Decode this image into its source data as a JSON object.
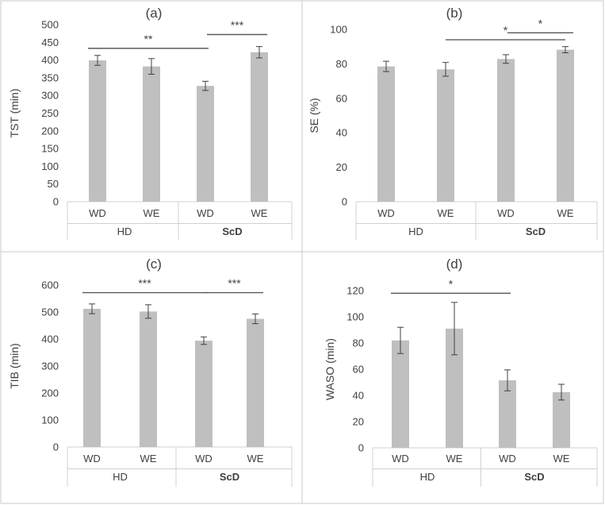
{
  "chart_data": [
    {
      "type": "bar",
      "title": "(a)",
      "ylabel": "TST (min)",
      "ylim": [
        0,
        500
      ],
      "yticks": [
        0,
        50,
        100,
        150,
        200,
        250,
        300,
        350,
        400,
        450,
        500
      ],
      "categories": [
        "WD",
        "WE",
        "WD",
        "WE"
      ],
      "groups": [
        {
          "label": "HD",
          "bold": false
        },
        {
          "label": "ScD",
          "bold": true
        }
      ],
      "values": [
        399,
        382,
        327,
        422
      ],
      "errors": [
        14,
        22,
        13,
        16
      ],
      "significance": [
        {
          "from": 0,
          "to": 2,
          "y": 433,
          "label": "**"
        },
        {
          "from": 2,
          "to": 3,
          "y": 472,
          "label": "***"
        }
      ]
    },
    {
      "type": "bar",
      "title": "(b)",
      "ylabel": "SE (%)",
      "ylim": [
        0,
        100
      ],
      "yticks": [
        0,
        20,
        40,
        60,
        80,
        100
      ],
      "categories": [
        "WD",
        "WE",
        "WD",
        "WE"
      ],
      "groups": [
        {
          "label": "HD",
          "bold": false
        },
        {
          "label": "ScD",
          "bold": true
        }
      ],
      "values": [
        78.5,
        76.8,
        82.8,
        88.2
      ],
      "errors": [
        3,
        4,
        2.5,
        1.8
      ],
      "significance": [
        {
          "from": 1,
          "to": 3,
          "y": 94,
          "label": "*"
        },
        {
          "from": 2,
          "to": 3,
          "y": 98,
          "label": "*"
        }
      ]
    },
    {
      "type": "bar",
      "title": "(c)",
      "ylabel": "TIB (min)",
      "ylim": [
        0,
        600
      ],
      "yticks": [
        0,
        100,
        200,
        300,
        400,
        500,
        600
      ],
      "categories": [
        "WD",
        "WE",
        "WD",
        "WE"
      ],
      "groups": [
        {
          "label": "HD",
          "bold": false
        },
        {
          "label": "ScD",
          "bold": true
        }
      ],
      "values": [
        512,
        502,
        394,
        475
      ],
      "errors": [
        18,
        25,
        14,
        18
      ],
      "significance": [
        {
          "from": 0,
          "to": 2,
          "y": 572,
          "label": "***"
        },
        {
          "from": 2,
          "to": 3,
          "y": 572,
          "label": "***"
        }
      ]
    },
    {
      "type": "bar",
      "title": "(d)",
      "ylabel": "WASO (min)",
      "ylim": [
        0,
        120
      ],
      "yticks": [
        0,
        20,
        40,
        60,
        80,
        100,
        120
      ],
      "categories": [
        "WD",
        "WE",
        "WD",
        "WE"
      ],
      "groups": [
        {
          "label": "HD",
          "bold": false
        },
        {
          "label": "ScD",
          "bold": true
        }
      ],
      "values": [
        82,
        91,
        51.5,
        42.5
      ],
      "errors": [
        10,
        20,
        8,
        6
      ],
      "significance": [
        {
          "from": 0,
          "to": 2,
          "y": 118,
          "label": "*"
        }
      ]
    }
  ]
}
